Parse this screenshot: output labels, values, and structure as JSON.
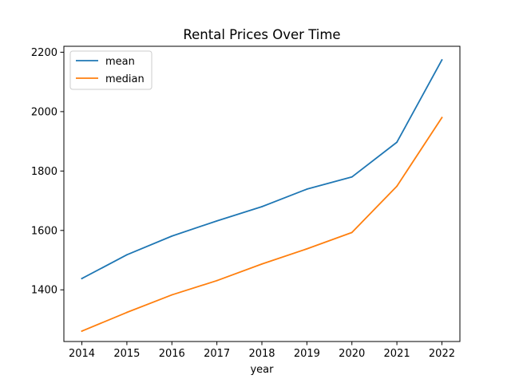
{
  "chart_data": {
    "type": "line",
    "title": "Rental Prices Over Time",
    "xlabel": "year",
    "ylabel": "",
    "categories": [
      "2014",
      "2015",
      "2016",
      "2017",
      "2018",
      "2019",
      "2020",
      "2021",
      "2022"
    ],
    "x": [
      2014,
      2015,
      2016,
      2017,
      2018,
      2019,
      2020,
      2021,
      2022
    ],
    "xlim": [
      2013.6,
      2022.4
    ],
    "ylim": [
      1226,
      2220
    ],
    "yticks": [
      1400,
      1600,
      1800,
      2000,
      2200
    ],
    "yticklabels": [
      "1400",
      "1600",
      "1800",
      "2000",
      "2200"
    ],
    "series": [
      {
        "name": "mean",
        "color": "#1f77b4",
        "values": [
          1438,
          1518,
          1581,
          1632,
          1680,
          1739,
          1780,
          1897,
          2174
        ]
      },
      {
        "name": "median",
        "color": "#ff7f0e",
        "values": [
          1261,
          1324,
          1383,
          1431,
          1487,
          1538,
          1593,
          1749,
          1980
        ]
      }
    ],
    "legend": {
      "position": "top-left",
      "entries": [
        "mean",
        "median"
      ]
    },
    "grid": false
  }
}
